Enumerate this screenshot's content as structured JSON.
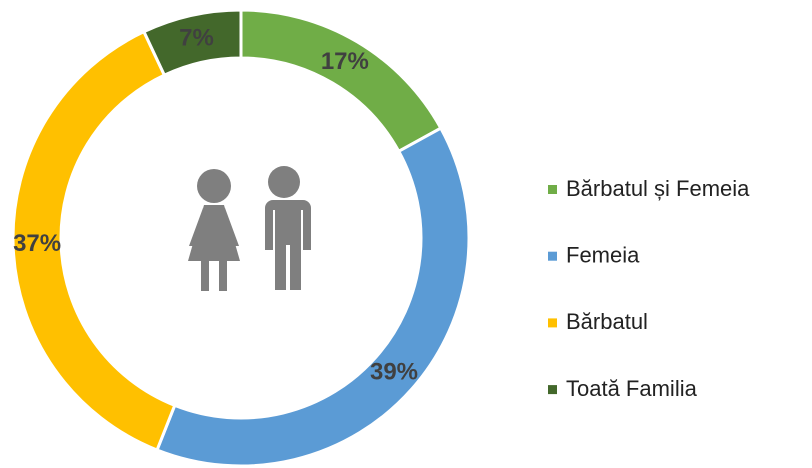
{
  "chart_data": {
    "type": "donut",
    "categories": [
      "Bărbatul și Femeia",
      "Femeia",
      "Bărbatul",
      "Toată Familia"
    ],
    "values": [
      17,
      39,
      37,
      7
    ],
    "value_labels": [
      "17%",
      "39%",
      "37%",
      "7%"
    ],
    "colors": [
      "#70ad47",
      "#5b9bd5",
      "#ffc000",
      "#43682b"
    ],
    "legend": "right"
  }
}
